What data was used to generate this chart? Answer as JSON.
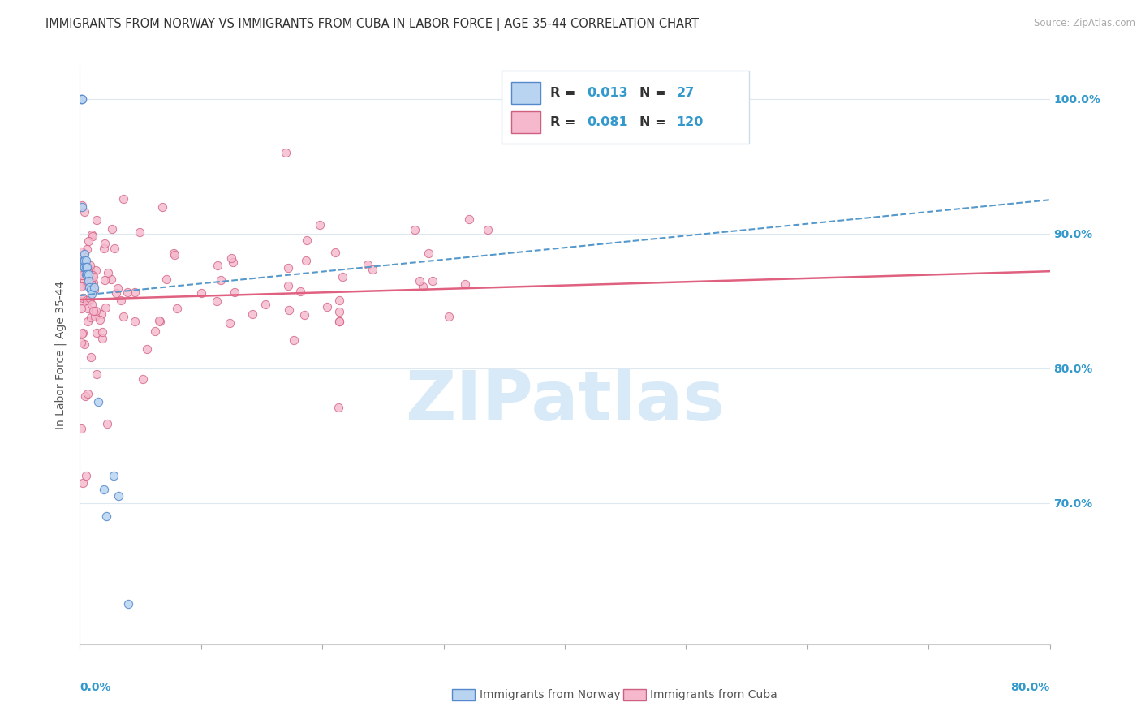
{
  "title": "IMMIGRANTS FROM NORWAY VS IMMIGRANTS FROM CUBA IN LABOR FORCE | AGE 35-44 CORRELATION CHART",
  "source": "Source: ZipAtlas.com",
  "ylabel": "In Labor Force | Age 35-44",
  "xlim": [
    0.0,
    0.8
  ],
  "ylim": [
    0.595,
    1.025
  ],
  "right_yticks": [
    0.7,
    0.8,
    0.9,
    1.0
  ],
  "right_yticklabels": [
    "70.0%",
    "80.0%",
    "90.0%",
    "100.0%"
  ],
  "norway_face_color": "#b8d4f0",
  "norway_edge_color": "#5588cc",
  "cuba_face_color": "#f5b8cc",
  "cuba_edge_color": "#d06080",
  "norway_trend_color": "#5599cc",
  "cuba_trend_color": "#e06080",
  "grid_color": "#dde8f0",
  "background_color": "#ffffff",
  "watermark_text": "ZIPatlas",
  "watermark_color": "#d8eaf8",
  "legend_norway_face": "#b8d4f0",
  "legend_norway_edge": "#5588cc",
  "legend_cuba_face": "#f5b8cc",
  "legend_cuba_edge": "#d06080",
  "legend_text_color": "#3399cc",
  "legend_label_color": "#333333",
  "axis_value_color": "#3399cc",
  "title_color": "#333333",
  "source_color": "#aaaaaa",
  "ylabel_color": "#555555",
  "bottom_label_color": "#555555",
  "norway_r": "0.013",
  "norway_n": "27",
  "cuba_r": "0.081",
  "cuba_n": "120",
  "bottom_label_norway": "Immigrants from Norway",
  "bottom_label_cuba": "Immigrants from Cuba"
}
